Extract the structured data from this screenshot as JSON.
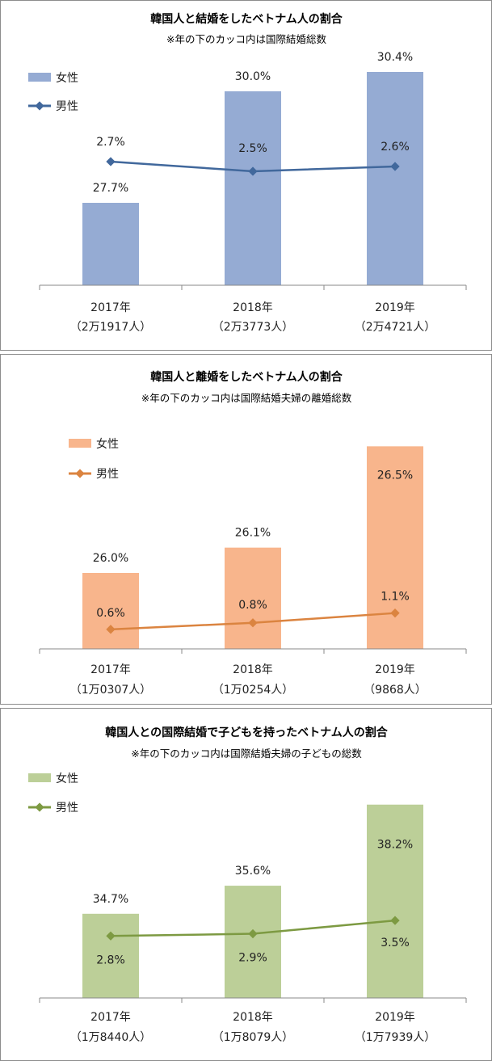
{
  "chart_data": [
    {
      "type": "bar",
      "title": "韓国人と結婚をしたベトナム人の割合",
      "subtitle": "※年の下のカッコ内は国際結婚総数",
      "categories": [
        "2017年",
        "2018年",
        "2019年"
      ],
      "category_notes": [
        "（2万1917人）",
        "（2万3773人）",
        "（2万4721人）"
      ],
      "series": [
        {
          "name": "女性",
          "kind": "bar",
          "axis": "primary",
          "values": [
            27.7,
            30.0,
            30.4
          ],
          "labels": [
            "27.7%",
            "30.0%",
            "30.4%"
          ],
          "color": "#95abd3"
        },
        {
          "name": "男性",
          "kind": "line",
          "axis": "secondary",
          "values": [
            2.7,
            2.5,
            2.6
          ],
          "labels": [
            "2.7%",
            "2.5%",
            "2.6%"
          ],
          "color": "#41689c"
        }
      ],
      "ylim": [
        26.0,
        30.7
      ],
      "y2lim": [
        0.15,
        4.85
      ],
      "legend": "top-left",
      "grid": false
    },
    {
      "type": "bar",
      "title": "韓国人と離婚をしたベトナム人の割合",
      "subtitle": "※年の下のカッコ内は国際結婚夫婦の離婚総数",
      "categories": [
        "2017年",
        "2018年",
        "2019年"
      ],
      "category_notes": [
        "（1万0307人）",
        "（1万0254人）",
        "（9868人）"
      ],
      "series": [
        {
          "name": "女性",
          "kind": "bar",
          "axis": "primary",
          "values": [
            26.0,
            26.1,
            26.5
          ],
          "labels": [
            "26.0%",
            "26.1%",
            "26.5%"
          ],
          "color": "#f8b58c"
        },
        {
          "name": "男性",
          "kind": "line",
          "axis": "secondary",
          "values": [
            0.6,
            0.8,
            1.1
          ],
          "labels": [
            "0.6%",
            "0.8%",
            "1.1%"
          ],
          "color": "#db8440"
        }
      ],
      "ylim": [
        25.7,
        26.6
      ],
      "y2lim": [
        0,
        7
      ],
      "legend": "top-left",
      "grid": false
    },
    {
      "type": "bar",
      "title": "韓国人との国際結婚で子どもを持ったベトナム人の割合",
      "subtitle": "※年の下のカッコ内は国際結婚夫婦の子どもの総数",
      "categories": [
        "2017年",
        "2018年",
        "2019年"
      ],
      "category_notes": [
        "（1万8440人）",
        "（1万8079人）",
        "（1万7939人）"
      ],
      "series": [
        {
          "name": "女性",
          "kind": "bar",
          "axis": "primary",
          "values": [
            34.7,
            35.6,
            38.2
          ],
          "labels": [
            "34.7%",
            "35.6%",
            "38.2%"
          ],
          "color": "#bccf98"
        },
        {
          "name": "男性",
          "kind": "line",
          "axis": "secondary",
          "values": [
            2.8,
            2.9,
            3.5
          ],
          "labels": [
            "2.8%",
            "2.9%",
            "3.5%"
          ],
          "color": "#7d9a42"
        }
      ],
      "ylim": [
        32.0,
        39.1
      ],
      "y2lim": [
        0,
        10
      ],
      "legend": "top-left",
      "grid": false
    }
  ]
}
